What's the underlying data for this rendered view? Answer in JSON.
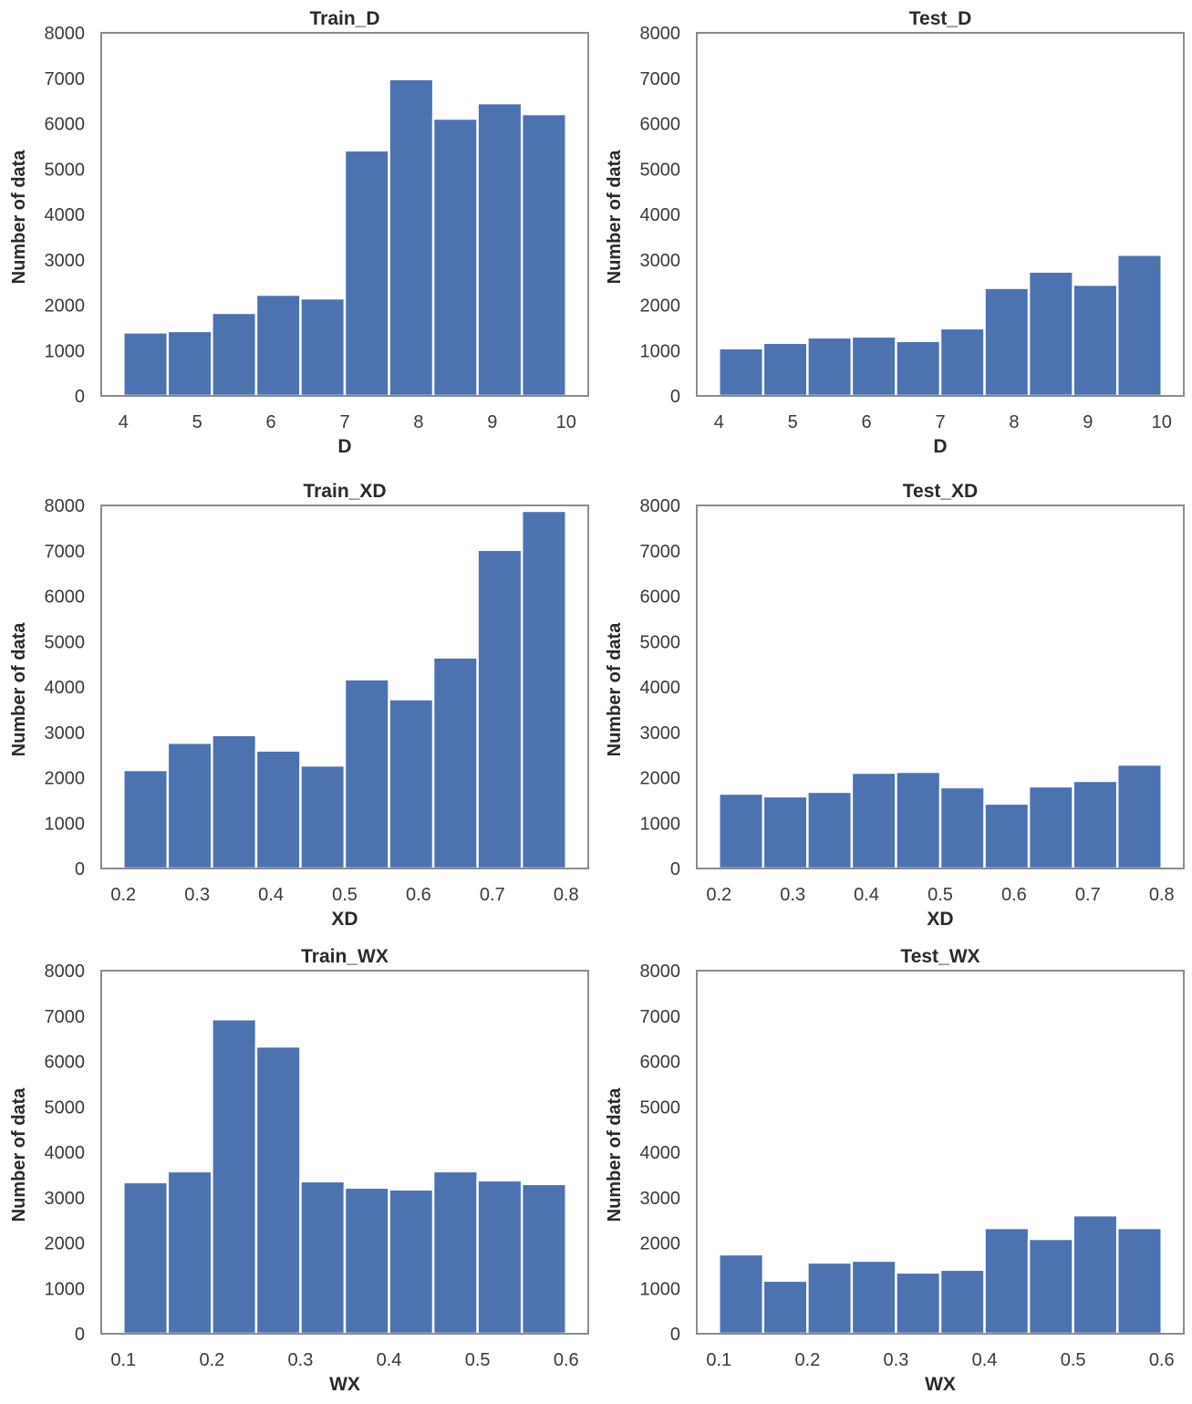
{
  "figure": {
    "bar_color": "#4c72b0",
    "edge_color": "#ffffff",
    "frame_color": "#8c8c8c"
  },
  "chart_data": [
    {
      "id": "train_d",
      "type": "bar",
      "title": "Train_D",
      "xlabel": "D",
      "ylabel": "Number of data",
      "xlim": [
        3.7,
        10.3
      ],
      "ylim": [
        0,
        8000
      ],
      "xticks": [
        4,
        5,
        6,
        7,
        8,
        9,
        10
      ],
      "xtick_labels": [
        "4",
        "5",
        "6",
        "7",
        "8",
        "9",
        "10"
      ],
      "yticks": [
        0,
        1000,
        2000,
        3000,
        4000,
        5000,
        6000,
        7000,
        8000
      ],
      "ytick_labels": [
        "0",
        "1000",
        "2000",
        "3000",
        "4000",
        "5000",
        "6000",
        "7000",
        "8000"
      ],
      "bin_edges": [
        4.0,
        4.6,
        5.2,
        5.8,
        6.4,
        7.0,
        7.6,
        8.2,
        8.8,
        9.4,
        10.0
      ],
      "values": [
        1400,
        1430,
        1830,
        2230,
        2150,
        5410,
        6980,
        6110,
        6450,
        6210
      ],
      "grid": false
    },
    {
      "id": "test_d",
      "type": "bar",
      "title": "Test_D",
      "xlabel": "D",
      "ylabel": "Number of data",
      "xlim": [
        3.7,
        10.3
      ],
      "ylim": [
        0,
        8000
      ],
      "xticks": [
        4,
        5,
        6,
        7,
        8,
        9,
        10
      ],
      "xtick_labels": [
        "4",
        "5",
        "6",
        "7",
        "8",
        "9",
        "10"
      ],
      "yticks": [
        0,
        1000,
        2000,
        3000,
        4000,
        5000,
        6000,
        7000,
        8000
      ],
      "ytick_labels": [
        "0",
        "1000",
        "2000",
        "3000",
        "4000",
        "5000",
        "6000",
        "7000",
        "8000"
      ],
      "bin_edges": [
        4.0,
        4.6,
        5.2,
        5.8,
        6.4,
        7.0,
        7.6,
        8.2,
        8.8,
        9.4,
        10.0
      ],
      "values": [
        1050,
        1170,
        1290,
        1310,
        1210,
        1490,
        2380,
        2740,
        2450,
        3110
      ],
      "grid": false
    },
    {
      "id": "train_xd",
      "type": "bar",
      "title": "Train_XD",
      "xlabel": "XD",
      "ylabel": "Number of data",
      "xlim": [
        0.17,
        0.83
      ],
      "ylim": [
        0,
        8000
      ],
      "xticks": [
        0.2,
        0.3,
        0.4,
        0.5,
        0.6,
        0.7,
        0.8
      ],
      "xtick_labels": [
        "0.2",
        "0.3",
        "0.4",
        "0.5",
        "0.6",
        "0.7",
        "0.8"
      ],
      "yticks": [
        0,
        1000,
        2000,
        3000,
        4000,
        5000,
        6000,
        7000,
        8000
      ],
      "ytick_labels": [
        "0",
        "1000",
        "2000",
        "3000",
        "4000",
        "5000",
        "6000",
        "7000",
        "8000"
      ],
      "bin_edges": [
        0.2,
        0.26,
        0.32,
        0.38,
        0.44,
        0.5,
        0.56,
        0.62,
        0.68,
        0.74,
        0.8
      ],
      "values": [
        2170,
        2770,
        2940,
        2600,
        2270,
        4170,
        3730,
        4650,
        7020,
        7880
      ],
      "grid": false
    },
    {
      "id": "test_xd",
      "type": "bar",
      "title": "Test_XD",
      "xlabel": "XD",
      "ylabel": "Number of data",
      "xlim": [
        0.17,
        0.83
      ],
      "ylim": [
        0,
        8000
      ],
      "xticks": [
        0.2,
        0.3,
        0.4,
        0.5,
        0.6,
        0.7,
        0.8
      ],
      "xtick_labels": [
        "0.2",
        "0.3",
        "0.4",
        "0.5",
        "0.6",
        "0.7",
        "0.8"
      ],
      "yticks": [
        0,
        1000,
        2000,
        3000,
        4000,
        5000,
        6000,
        7000,
        8000
      ],
      "ytick_labels": [
        "0",
        "1000",
        "2000",
        "3000",
        "4000",
        "5000",
        "6000",
        "7000",
        "8000"
      ],
      "bin_edges": [
        0.2,
        0.26,
        0.32,
        0.38,
        0.44,
        0.5,
        0.56,
        0.62,
        0.68,
        0.74,
        0.8
      ],
      "values": [
        1650,
        1590,
        1690,
        2110,
        2130,
        1790,
        1430,
        1810,
        1930,
        2290
      ],
      "grid": false
    },
    {
      "id": "train_wx",
      "type": "bar",
      "title": "Train_WX",
      "xlabel": "WX",
      "ylabel": "Number of data",
      "xlim": [
        0.075,
        0.625
      ],
      "ylim": [
        0,
        8000
      ],
      "xticks": [
        0.1,
        0.2,
        0.3,
        0.4,
        0.5,
        0.6
      ],
      "xtick_labels": [
        "0.1",
        "0.2",
        "0.3",
        "0.4",
        "0.5",
        "0.6"
      ],
      "yticks": [
        0,
        1000,
        2000,
        3000,
        4000,
        5000,
        6000,
        7000,
        8000
      ],
      "ytick_labels": [
        "0",
        "1000",
        "2000",
        "3000",
        "4000",
        "5000",
        "6000",
        "7000",
        "8000"
      ],
      "bin_edges": [
        0.1,
        0.15,
        0.2,
        0.25,
        0.3,
        0.35,
        0.4,
        0.45,
        0.5,
        0.55,
        0.6
      ],
      "values": [
        3340,
        3580,
        6930,
        6330,
        3360,
        3220,
        3180,
        3580,
        3380,
        3300
      ],
      "grid": false
    },
    {
      "id": "test_wx",
      "type": "bar",
      "title": "Test_WX",
      "xlabel": "WX",
      "ylabel": "Number of data",
      "xlim": [
        0.075,
        0.625
      ],
      "ylim": [
        0,
        8000
      ],
      "xticks": [
        0.1,
        0.2,
        0.3,
        0.4,
        0.5,
        0.6
      ],
      "xtick_labels": [
        "0.1",
        "0.2",
        "0.3",
        "0.4",
        "0.5",
        "0.6"
      ],
      "yticks": [
        0,
        1000,
        2000,
        3000,
        4000,
        5000,
        6000,
        7000,
        8000
      ],
      "ytick_labels": [
        "0",
        "1000",
        "2000",
        "3000",
        "4000",
        "5000",
        "6000",
        "7000",
        "8000"
      ],
      "bin_edges": [
        0.1,
        0.15,
        0.2,
        0.25,
        0.3,
        0.35,
        0.4,
        0.45,
        0.5,
        0.55,
        0.6
      ],
      "values": [
        1750,
        1170,
        1570,
        1610,
        1350,
        1410,
        2330,
        2090,
        2610,
        2330
      ],
      "grid": false
    }
  ]
}
